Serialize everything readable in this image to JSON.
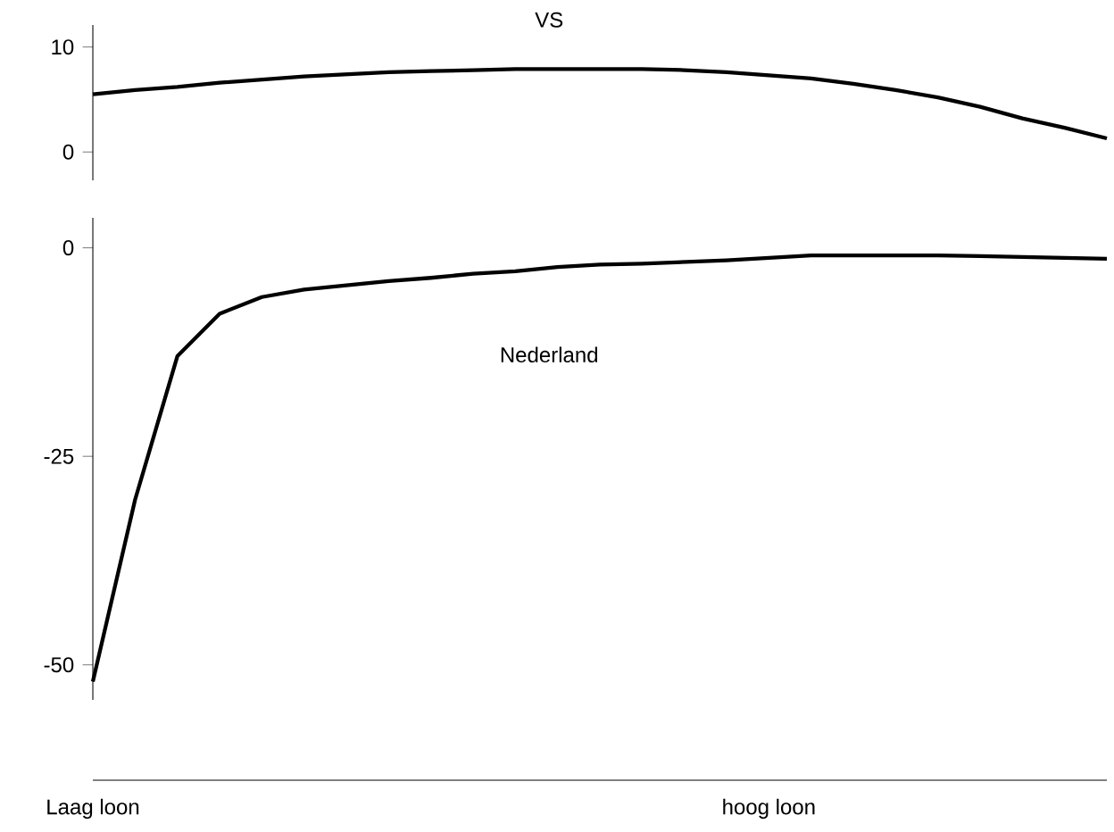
{
  "chart_data": [
    {
      "type": "line",
      "categories": [
        null,
        null,
        null,
        null,
        null,
        null,
        null,
        null,
        null,
        null,
        null,
        null,
        null,
        null,
        null,
        null,
        null,
        null,
        null,
        null,
        null,
        null,
        null,
        null,
        null
      ],
      "ylim": [
        -2.7,
        12.1
      ],
      "yticks": [
        0,
        10
      ],
      "tick_labels": "y",
      "series": [
        {
          "name": "VS",
          "color": "#000000",
          "values": [
            5.5,
            5.9,
            6.2,
            6.6,
            6.9,
            7.2,
            7.4,
            7.6,
            7.7,
            7.8,
            7.9,
            7.9,
            7.9,
            7.9,
            7.8,
            7.6,
            7.3,
            7.0,
            6.5,
            5.9,
            5.2,
            4.3,
            3.2,
            2.3,
            1.3
          ]
        }
      ]
    },
    {
      "type": "line",
      "categories": [
        "Laag loon",
        null,
        null,
        null,
        null,
        null,
        null,
        null,
        null,
        null,
        null,
        null,
        null,
        null,
        null,
        null,
        "hoog loon",
        null,
        null,
        null,
        null,
        null,
        null,
        null,
        null
      ],
      "ylim": [
        -54.2,
        3.6
      ],
      "yticks": [
        -50,
        -25,
        0
      ],
      "series": [
        {
          "name": "Nederland",
          "color": "#000000",
          "values": [
            -52,
            -30.2,
            -13,
            -7.9,
            -5.9,
            -5.0,
            -4.5,
            -4.0,
            -3.6,
            -3.1,
            -2.8,
            -2.3,
            -2.0,
            -1.9,
            -1.7,
            -1.5,
            -1.2,
            -0.9,
            -0.9,
            -0.9,
            -0.9,
            -1.0,
            -1.1,
            -1.2,
            -1.3
          ]
        }
      ]
    }
  ]
}
